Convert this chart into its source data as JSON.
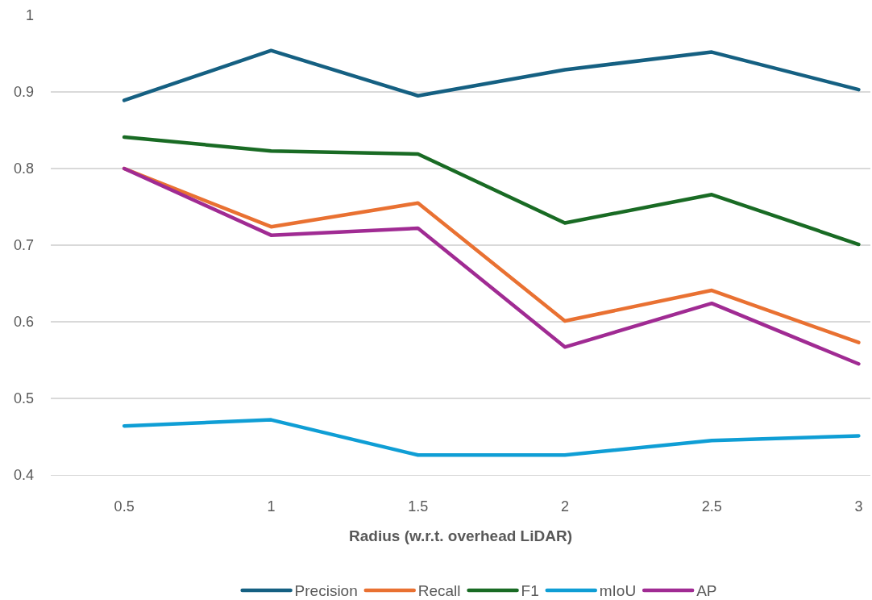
{
  "chart_data": {
    "type": "line",
    "xlabel": "Radius (w.r.t. overhead LiDAR)",
    "categories": [
      "0.5",
      "1",
      "1.5",
      "2",
      "2.5",
      "3"
    ],
    "series": [
      {
        "name": "Precision",
        "color": "#156082",
        "values": [
          0.889,
          0.954,
          0.895,
          0.929,
          0.952,
          0.903
        ]
      },
      {
        "name": "Recall",
        "color": "#e97132",
        "values": [
          0.8,
          0.724,
          0.755,
          0.601,
          0.641,
          0.573
        ]
      },
      {
        "name": "F1",
        "color": "#196b24",
        "values": [
          0.841,
          0.823,
          0.819,
          0.729,
          0.766,
          0.701
        ]
      },
      {
        "name": "mIoU",
        "color": "#0f9ed5",
        "values": [
          0.464,
          0.472,
          0.426,
          0.426,
          0.445,
          0.451
        ]
      },
      {
        "name": "AP",
        "color": "#a02b93",
        "values": [
          0.8,
          0.713,
          0.722,
          0.567,
          0.624,
          0.545
        ]
      }
    ],
    "ylim": [
      0.4,
      1
    ],
    "yticks": [
      0.4,
      0.5,
      0.6,
      0.7,
      0.8,
      0.9,
      1
    ],
    "grid": "y",
    "legend": "bottom",
    "line_style": "solid",
    "marker": "none"
  }
}
